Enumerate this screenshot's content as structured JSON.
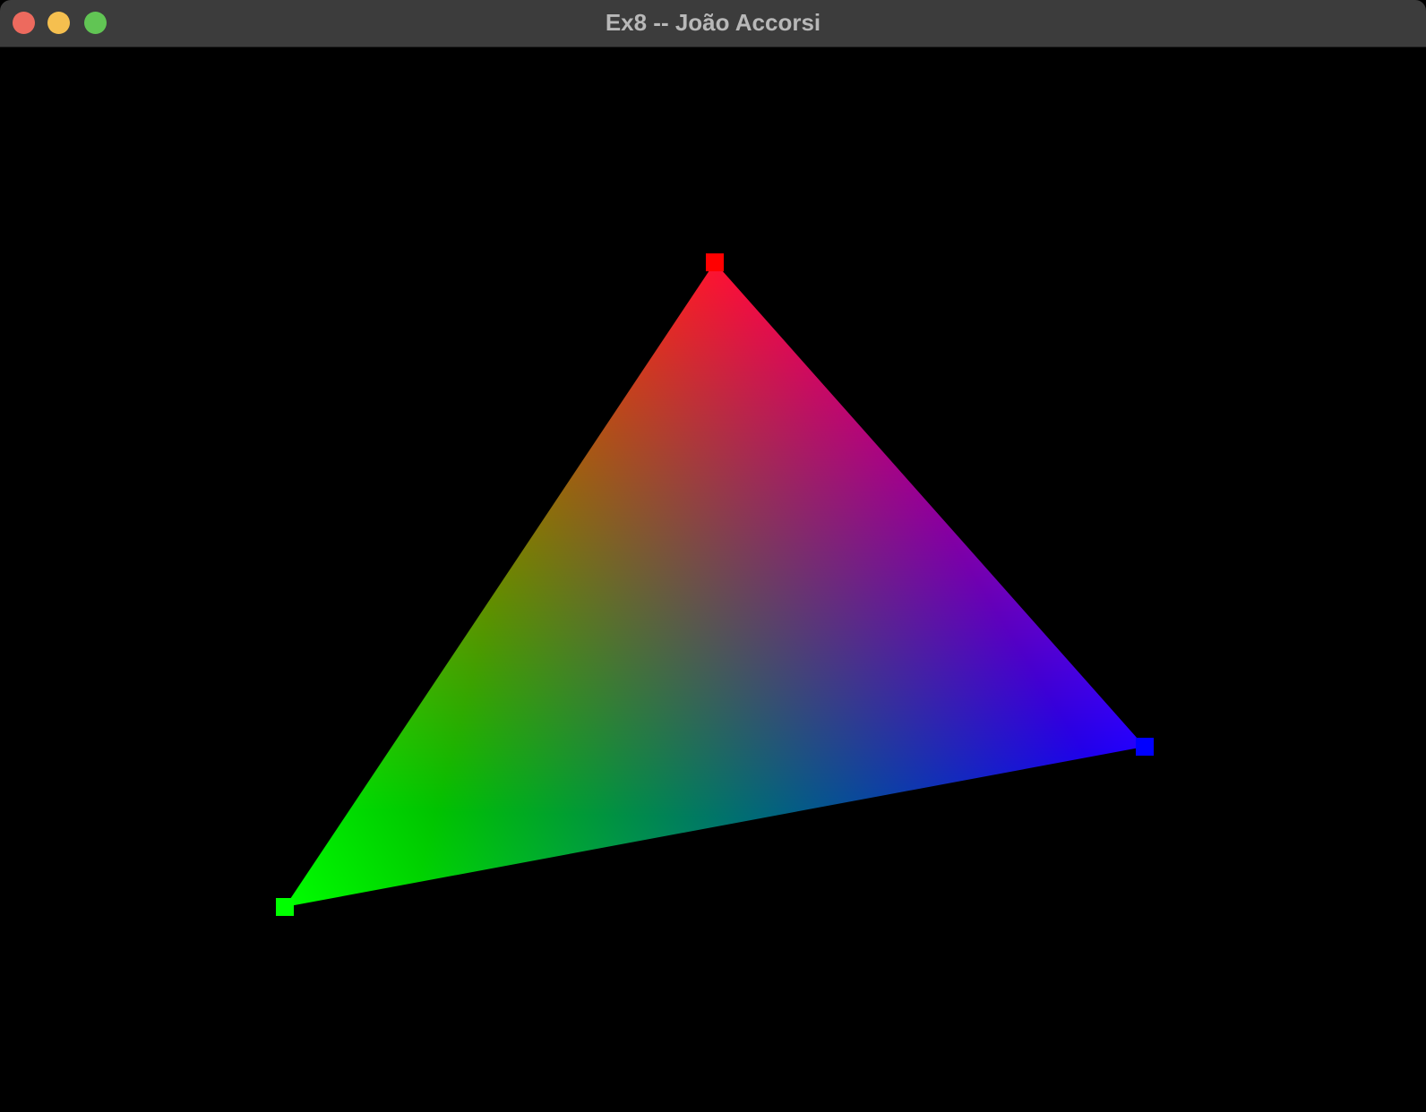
{
  "window": {
    "title": "Ex8 -- João Accorsi",
    "buttons": [
      {
        "name": "close",
        "color": "#ed6a5e"
      },
      {
        "name": "minimize",
        "color": "#f5bf4f"
      },
      {
        "name": "zoom",
        "color": "#61c554"
      }
    ]
  },
  "scene": {
    "background": "#000000",
    "vertices": [
      {
        "name": "top",
        "color": "#ff0000"
      },
      {
        "name": "right",
        "color": "#0000ff"
      },
      {
        "name": "left",
        "color": "#00ff00"
      }
    ]
  }
}
